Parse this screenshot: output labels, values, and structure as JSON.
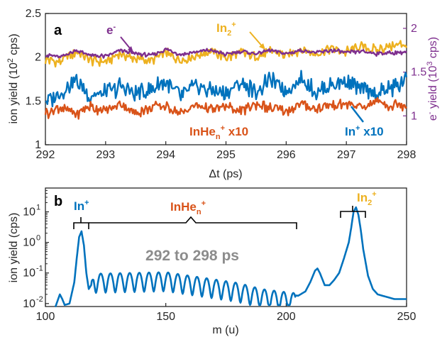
{
  "colors": {
    "in2": "#EDB120",
    "electron": "#7E2F8E",
    "in": "#0072BD",
    "inhe": "#D95319",
    "spectrum": "#0072BD",
    "note": "#8c8c8c",
    "axis": "#262626"
  },
  "panel_a": {
    "letter": "a",
    "ylabel_left": {
      "pre": "ion yield (10",
      "sup": "2",
      "post": " cps)"
    },
    "ylabel_right": {
      "pre": "e",
      "sup1": "-",
      "mid": " yield (10",
      "sup2": "3",
      "post": " cps)"
    },
    "xlabel": "Δt (ps)",
    "labels": {
      "electron": {
        "text": "e",
        "sup": "-"
      },
      "in2": {
        "text": "In",
        "sub": "2",
        "sup": "+"
      },
      "inhe": {
        "text": "InHe",
        "sub": "n",
        "sup": "+",
        "post": " x10"
      },
      "in": {
        "text": "In",
        "sup": "+",
        "post": " x10"
      }
    }
  },
  "panel_b": {
    "letter": "b",
    "ylabel": "ion yield (cps)",
    "xlabel": "m (u)",
    "labels": {
      "in": {
        "text": "In",
        "sup": "+"
      },
      "inhe": {
        "text": "InHe",
        "sub": "n",
        "sup": "+"
      },
      "in2": {
        "text": "In",
        "sub": "2",
        "sup": "+"
      }
    },
    "note": "292 to 298 ps"
  },
  "chart_data": [
    {
      "type": "line",
      "panel": "a",
      "xlim": [
        292,
        298
      ],
      "ylim_left": [
        1,
        2.5
      ],
      "ylim_right_label": "e- yield (10^3 cps)",
      "xticks": [
        "292",
        "293",
        "294",
        "295",
        "296",
        "297",
        "298"
      ],
      "yticks_left": [
        "1",
        "1.5",
        "2",
        "2.5"
      ],
      "yticks_right": [
        "1",
        "1.5",
        "2"
      ],
      "grid": false,
      "series": [
        {
          "name": "In2+",
          "color": "#EDB120",
          "x": [
            292,
            292.25,
            292.5,
            292.75,
            293,
            293.25,
            293.5,
            293.75,
            294,
            294.25,
            294.5,
            294.75,
            295,
            295.25,
            295.5,
            295.75,
            296,
            296.25,
            296.5,
            296.75,
            297,
            297.25,
            297.5,
            297.75,
            298
          ],
          "y": [
            1.97,
            1.95,
            2.06,
            1.96,
            1.95,
            2.04,
            1.98,
            1.96,
            2.05,
            1.97,
            2.02,
            2.07,
            1.99,
            2.05,
            2.0,
            2.07,
            2.02,
            2.09,
            2.04,
            2.1,
            2.06,
            2.13,
            2.08,
            2.13,
            2.15
          ]
        },
        {
          "name": "e-",
          "color": "#7E2F8E",
          "x": [
            292,
            292.25,
            292.5,
            292.75,
            293,
            293.25,
            293.5,
            293.75,
            294,
            294.25,
            294.5,
            294.75,
            295,
            295.25,
            295.5,
            295.75,
            296,
            296.25,
            296.5,
            296.75,
            297,
            297.25,
            297.5,
            297.75,
            298
          ],
          "y": [
            2.03,
            2.0,
            2.08,
            2.02,
            2.01,
            2.08,
            2.04,
            2.02,
            2.09,
            2.03,
            2.06,
            2.08,
            2.03,
            2.07,
            2.04,
            2.08,
            2.04,
            2.08,
            2.05,
            2.08,
            2.05,
            2.07,
            2.04,
            2.05,
            2.06
          ]
        },
        {
          "name": "In+ x10",
          "color": "#0072BD",
          "x": [
            292,
            292.25,
            292.5,
            292.75,
            293,
            293.25,
            293.5,
            293.75,
            294,
            294.25,
            294.5,
            294.75,
            295,
            295.25,
            295.5,
            295.75,
            296,
            296.25,
            296.5,
            296.75,
            297,
            297.25,
            297.5,
            297.75,
            298
          ],
          "y": [
            1.5,
            1.58,
            1.75,
            1.55,
            1.6,
            1.66,
            1.58,
            1.62,
            1.72,
            1.55,
            1.68,
            1.62,
            1.58,
            1.7,
            1.6,
            1.74,
            1.62,
            1.75,
            1.6,
            1.68,
            1.72,
            1.62,
            1.58,
            1.64,
            1.74
          ]
        },
        {
          "name": "InHen+ x10",
          "color": "#D95319",
          "x": [
            292,
            292.25,
            292.5,
            292.75,
            293,
            293.25,
            293.5,
            293.75,
            294,
            294.25,
            294.5,
            294.75,
            295,
            295.25,
            295.5,
            295.75,
            296,
            296.25,
            296.5,
            296.75,
            297,
            297.25,
            297.5,
            297.75,
            298
          ],
          "y": [
            1.36,
            1.42,
            1.35,
            1.44,
            1.38,
            1.47,
            1.36,
            1.43,
            1.45,
            1.36,
            1.46,
            1.4,
            1.44,
            1.38,
            1.47,
            1.41,
            1.37,
            1.46,
            1.4,
            1.45,
            1.47,
            1.42,
            1.5,
            1.44,
            1.47
          ]
        }
      ]
    },
    {
      "type": "line",
      "panel": "b",
      "xlim": [
        100,
        250
      ],
      "ylim": [
        0.008,
        60
      ],
      "yscale": "log",
      "xticks": [
        "100",
        "150",
        "200",
        "250"
      ],
      "yticks": [
        "10-2",
        "10-1",
        "100",
        "101"
      ],
      "grid": false,
      "series": [
        {
          "name": "spectrum",
          "color": "#0072BD",
          "x": [
            105,
            106,
            107,
            108,
            110,
            112,
            113,
            114,
            115,
            116,
            117,
            118,
            119,
            120,
            150,
            180,
            190,
            200,
            205,
            208,
            210,
            212,
            213,
            214,
            216,
            218,
            220,
            222,
            224,
            226,
            227,
            228,
            229,
            230,
            231,
            232,
            234,
            236,
            238,
            240,
            245,
            250
          ],
          "y": [
            0.012,
            0.02,
            0.014,
            0.009,
            0.01,
            0.05,
            0.3,
            1.5,
            2.3,
            0.8,
            0.1,
            0.03,
            0.04,
            0.08,
            0.09,
            0.04,
            0.025,
            0.02,
            0.018,
            0.025,
            0.05,
            0.12,
            0.14,
            0.1,
            0.04,
            0.04,
            0.06,
            0.1,
            0.3,
            1.0,
            3.0,
            10.0,
            14.0,
            8.0,
            2.5,
            0.6,
            0.08,
            0.03,
            0.02,
            0.018,
            0.014,
            0.014
          ]
        }
      ]
    }
  ]
}
